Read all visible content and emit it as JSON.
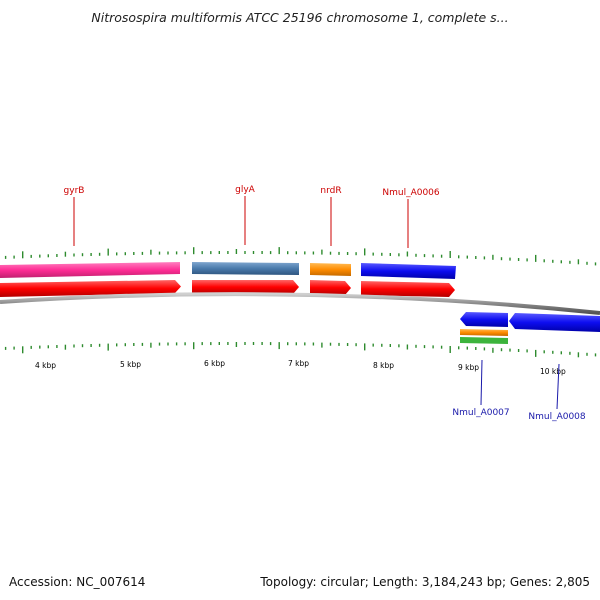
{
  "title": "Nitrosospira multiformis ATCC 25196 chromosome 1, complete s...",
  "footer": {
    "accession": "Accession: NC_007614",
    "summary": "Topology: circular; Length: 3,184,243 bp; Genes: 2,805"
  },
  "scale_labels": [
    "4 kbp",
    "5 kbp",
    "6 kbp",
    "7 kbp",
    "8 kbp",
    "9 kbp",
    "10 kbp"
  ],
  "genes": [
    {
      "label": "gyrB",
      "strand": "forward",
      "color": "#cc0000"
    },
    {
      "label": "glyA",
      "strand": "forward",
      "color": "#cc0000"
    },
    {
      "label": "nrdR",
      "strand": "forward",
      "color": "#cc0000"
    },
    {
      "label": "Nmul_A0006",
      "strand": "forward",
      "color": "#cc0000"
    },
    {
      "label": "Nmul_A0007",
      "strand": "reverse",
      "color": "#1a1aaa"
    },
    {
      "label": "Nmul_A0008",
      "strand": "reverse",
      "color": "#1a1aaa"
    }
  ],
  "colors": {
    "cds": "#ff1a1a",
    "pink": "#ff3399",
    "steelblue": "#4f7fb0",
    "orange": "#ff8c00",
    "blue": "#1010ee",
    "green": "#3cb43c",
    "ticks": "#2e8b2e",
    "backbone": "#888888"
  }
}
